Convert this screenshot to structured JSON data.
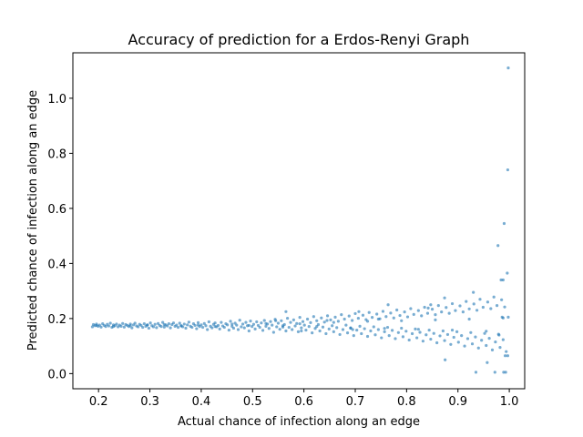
{
  "chart_data": {
    "type": "scatter",
    "title": "Accuracy of prediction for a Erdos-Renyi Graph",
    "xlabel": "Actual chance of infection along an edge",
    "ylabel": "Predicted chance of infection along an edge",
    "xlim": [
      0.15,
      1.03
    ],
    "ylim": [
      -0.055,
      1.165
    ],
    "xticks": [
      0.2,
      0.3,
      0.4,
      0.5,
      0.6,
      0.7,
      0.8,
      0.9,
      1.0
    ],
    "xtick_labels": [
      "0.2",
      "0.3",
      "0.4",
      "0.5",
      "0.6",
      "0.7",
      "0.8",
      "0.9",
      "1.0"
    ],
    "yticks": [
      0.0,
      0.2,
      0.4,
      0.6,
      0.8,
      1.0
    ],
    "ytick_labels": [
      "0.0",
      "0.2",
      "0.4",
      "0.6",
      "0.8",
      "1.0"
    ],
    "grid": false,
    "point_color": "#1f77b4",
    "points": [
      [
        0.188,
        0.17
      ],
      [
        0.19,
        0.178
      ],
      [
        0.193,
        0.174
      ],
      [
        0.196,
        0.18
      ],
      [
        0.199,
        0.172
      ],
      [
        0.202,
        0.176
      ],
      [
        0.205,
        0.169
      ],
      [
        0.208,
        0.181
      ],
      [
        0.211,
        0.175
      ],
      [
        0.214,
        0.171
      ],
      [
        0.217,
        0.179
      ],
      [
        0.22,
        0.173
      ],
      [
        0.223,
        0.183
      ],
      [
        0.226,
        0.168
      ],
      [
        0.229,
        0.177
      ],
      [
        0.232,
        0.174
      ],
      [
        0.235,
        0.18
      ],
      [
        0.238,
        0.17
      ],
      [
        0.241,
        0.176
      ],
      [
        0.244,
        0.172
      ],
      [
        0.247,
        0.182
      ],
      [
        0.25,
        0.169
      ],
      [
        0.253,
        0.178
      ],
      [
        0.256,
        0.175
      ],
      [
        0.259,
        0.171
      ],
      [
        0.262,
        0.18
      ],
      [
        0.265,
        0.166
      ],
      [
        0.268,
        0.177
      ],
      [
        0.271,
        0.183
      ],
      [
        0.274,
        0.173
      ],
      [
        0.277,
        0.17
      ],
      [
        0.28,
        0.179
      ],
      [
        0.283,
        0.175
      ],
      [
        0.286,
        0.168
      ],
      [
        0.289,
        0.181
      ],
      [
        0.292,
        0.172
      ],
      [
        0.295,
        0.177
      ],
      [
        0.298,
        0.165
      ],
      [
        0.301,
        0.184
      ],
      [
        0.304,
        0.174
      ],
      [
        0.307,
        0.17
      ],
      [
        0.31,
        0.179
      ],
      [
        0.313,
        0.167
      ],
      [
        0.316,
        0.182
      ],
      [
        0.319,
        0.175
      ],
      [
        0.322,
        0.171
      ],
      [
        0.325,
        0.186
      ],
      [
        0.328,
        0.169
      ],
      [
        0.331,
        0.177
      ],
      [
        0.334,
        0.173
      ],
      [
        0.337,
        0.181
      ],
      [
        0.34,
        0.166
      ],
      [
        0.343,
        0.178
      ],
      [
        0.346,
        0.184
      ],
      [
        0.349,
        0.172
      ],
      [
        0.352,
        0.176
      ],
      [
        0.355,
        0.168
      ],
      [
        0.358,
        0.183
      ],
      [
        0.361,
        0.174
      ],
      [
        0.364,
        0.17
      ],
      [
        0.367,
        0.18
      ],
      [
        0.37,
        0.165
      ],
      [
        0.373,
        0.177
      ],
      [
        0.376,
        0.187
      ],
      [
        0.379,
        0.172
      ],
      [
        0.382,
        0.168
      ],
      [
        0.385,
        0.181
      ],
      [
        0.388,
        0.175
      ],
      [
        0.391,
        0.163
      ],
      [
        0.394,
        0.185
      ],
      [
        0.397,
        0.171
      ],
      [
        0.4,
        0.177
      ],
      [
        0.403,
        0.168
      ],
      [
        0.406,
        0.182
      ],
      [
        0.409,
        0.174
      ],
      [
        0.412,
        0.16
      ],
      [
        0.415,
        0.188
      ],
      [
        0.418,
        0.172
      ],
      [
        0.421,
        0.166
      ],
      [
        0.424,
        0.179
      ],
      [
        0.427,
        0.184
      ],
      [
        0.43,
        0.17
      ],
      [
        0.433,
        0.175
      ],
      [
        0.436,
        0.162
      ],
      [
        0.439,
        0.186
      ],
      [
        0.442,
        0.173
      ],
      [
        0.445,
        0.168
      ],
      [
        0.448,
        0.181
      ],
      [
        0.451,
        0.177
      ],
      [
        0.454,
        0.158
      ],
      [
        0.457,
        0.19
      ],
      [
        0.46,
        0.172
      ],
      [
        0.463,
        0.165
      ],
      [
        0.466,
        0.183
      ],
      [
        0.469,
        0.176
      ],
      [
        0.472,
        0.16
      ],
      [
        0.475,
        0.194
      ],
      [
        0.478,
        0.17
      ],
      [
        0.481,
        0.18
      ],
      [
        0.484,
        0.166
      ],
      [
        0.487,
        0.186
      ],
      [
        0.49,
        0.174
      ],
      [
        0.493,
        0.155
      ],
      [
        0.496,
        0.191
      ],
      [
        0.499,
        0.171
      ],
      [
        0.502,
        0.179
      ],
      [
        0.505,
        0.162
      ],
      [
        0.508,
        0.188
      ],
      [
        0.511,
        0.175
      ],
      [
        0.514,
        0.168
      ],
      [
        0.517,
        0.184
      ],
      [
        0.52,
        0.157
      ],
      [
        0.523,
        0.193
      ],
      [
        0.526,
        0.172
      ],
      [
        0.529,
        0.18
      ],
      [
        0.532,
        0.164
      ],
      [
        0.535,
        0.189
      ],
      [
        0.538,
        0.176
      ],
      [
        0.541,
        0.15
      ],
      [
        0.544,
        0.197
      ],
      [
        0.547,
        0.17
      ],
      [
        0.55,
        0.183
      ],
      [
        0.553,
        0.161
      ],
      [
        0.556,
        0.192
      ],
      [
        0.559,
        0.174
      ],
      [
        0.562,
        0.178
      ],
      [
        0.565,
        0.155
      ],
      [
        0.568,
        0.201
      ],
      [
        0.571,
        0.168
      ],
      [
        0.574,
        0.186
      ],
      [
        0.577,
        0.16
      ],
      [
        0.58,
        0.195
      ],
      [
        0.583,
        0.173
      ],
      [
        0.586,
        0.182
      ],
      [
        0.589,
        0.152
      ],
      [
        0.592,
        0.204
      ],
      [
        0.595,
        0.166
      ],
      [
        0.598,
        0.189
      ],
      [
        0.601,
        0.176
      ],
      [
        0.604,
        0.158
      ],
      [
        0.607,
        0.198
      ],
      [
        0.61,
        0.171
      ],
      [
        0.613,
        0.185
      ],
      [
        0.616,
        0.148
      ],
      [
        0.619,
        0.207
      ],
      [
        0.622,
        0.164
      ],
      [
        0.625,
        0.192
      ],
      [
        0.628,
        0.178
      ],
      [
        0.631,
        0.155
      ],
      [
        0.634,
        0.202
      ],
      [
        0.637,
        0.169
      ],
      [
        0.64,
        0.187
      ],
      [
        0.643,
        0.145
      ],
      [
        0.646,
        0.21
      ],
      [
        0.649,
        0.162
      ],
      [
        0.652,
        0.195
      ],
      [
        0.655,
        0.174
      ],
      [
        0.658,
        0.152
      ],
      [
        0.661,
        0.205
      ],
      [
        0.664,
        0.167
      ],
      [
        0.667,
        0.19
      ],
      [
        0.67,
        0.142
      ],
      [
        0.673,
        0.214
      ],
      [
        0.676,
        0.16
      ],
      [
        0.679,
        0.198
      ],
      [
        0.682,
        0.176
      ],
      [
        0.685,
        0.148
      ],
      [
        0.688,
        0.209
      ],
      [
        0.691,
        0.165
      ],
      [
        0.694,
        0.193
      ],
      [
        0.697,
        0.138
      ],
      [
        0.7,
        0.218
      ],
      [
        0.703,
        0.158
      ],
      [
        0.706,
        0.201
      ],
      [
        0.709,
        0.172
      ],
      [
        0.712,
        0.145
      ],
      [
        0.715,
        0.212
      ],
      [
        0.718,
        0.163
      ],
      [
        0.721,
        0.196
      ],
      [
        0.724,
        0.135
      ],
      [
        0.727,
        0.222
      ],
      [
        0.73,
        0.155
      ],
      [
        0.733,
        0.204
      ],
      [
        0.736,
        0.17
      ],
      [
        0.739,
        0.141
      ],
      [
        0.742,
        0.216
      ],
      [
        0.745,
        0.16
      ],
      [
        0.748,
        0.199
      ],
      [
        0.751,
        0.13
      ],
      [
        0.754,
        0.226
      ],
      [
        0.757,
        0.152
      ],
      [
        0.76,
        0.207
      ],
      [
        0.763,
        0.168
      ],
      [
        0.766,
        0.138
      ],
      [
        0.769,
        0.22
      ],
      [
        0.772,
        0.157
      ],
      [
        0.775,
        0.202
      ],
      [
        0.778,
        0.127
      ],
      [
        0.781,
        0.231
      ],
      [
        0.784,
        0.149
      ],
      [
        0.787,
        0.211
      ],
      [
        0.79,
        0.165
      ],
      [
        0.793,
        0.134
      ],
      [
        0.796,
        0.224
      ],
      [
        0.799,
        0.154
      ],
      [
        0.802,
        0.206
      ],
      [
        0.805,
        0.122
      ],
      [
        0.808,
        0.236
      ],
      [
        0.811,
        0.145
      ],
      [
        0.814,
        0.215
      ],
      [
        0.817,
        0.162
      ],
      [
        0.82,
        0.13
      ],
      [
        0.823,
        0.229
      ],
      [
        0.826,
        0.15
      ],
      [
        0.829,
        0.21
      ],
      [
        0.832,
        0.118
      ],
      [
        0.835,
        0.241
      ],
      [
        0.838,
        0.141
      ],
      [
        0.841,
        0.219
      ],
      [
        0.844,
        0.158
      ],
      [
        0.847,
        0.125
      ],
      [
        0.85,
        0.234
      ],
      [
        0.853,
        0.146
      ],
      [
        0.856,
        0.214
      ],
      [
        0.859,
        0.112
      ],
      [
        0.862,
        0.247
      ],
      [
        0.865,
        0.137
      ],
      [
        0.868,
        0.224
      ],
      [
        0.871,
        0.155
      ],
      [
        0.874,
        0.12
      ],
      [
        0.877,
        0.24
      ],
      [
        0.88,
        0.142
      ],
      [
        0.883,
        0.219
      ],
      [
        0.886,
        0.106
      ],
      [
        0.889,
        0.254
      ],
      [
        0.892,
        0.132
      ],
      [
        0.895,
        0.229
      ],
      [
        0.898,
        0.152
      ],
      [
        0.901,
        0.114
      ],
      [
        0.904,
        0.246
      ],
      [
        0.907,
        0.138
      ],
      [
        0.91,
        0.224
      ],
      [
        0.913,
        0.1
      ],
      [
        0.916,
        0.262
      ],
      [
        0.919,
        0.127
      ],
      [
        0.922,
        0.235
      ],
      [
        0.925,
        0.149
      ],
      [
        0.928,
        0.108
      ],
      [
        0.931,
        0.253
      ],
      [
        0.934,
        0.133
      ],
      [
        0.937,
        0.23
      ],
      [
        0.94,
        0.093
      ],
      [
        0.943,
        0.27
      ],
      [
        0.946,
        0.121
      ],
      [
        0.949,
        0.241
      ],
      [
        0.952,
        0.146
      ],
      [
        0.955,
        0.102
      ],
      [
        0.958,
        0.26
      ],
      [
        0.961,
        0.128
      ],
      [
        0.964,
        0.236
      ],
      [
        0.967,
        0.086
      ],
      [
        0.97,
        0.278
      ],
      [
        0.973,
        0.115
      ],
      [
        0.976,
        0.247
      ],
      [
        0.979,
        0.143
      ],
      [
        0.982,
        0.095
      ],
      [
        0.985,
        0.268
      ],
      [
        0.988,
        0.123
      ],
      [
        0.991,
        0.242
      ],
      [
        0.994,
        0.08
      ],
      [
        0.196,
        0.175
      ],
      [
        0.229,
        0.171
      ],
      [
        0.262,
        0.174
      ],
      [
        0.295,
        0.176
      ],
      [
        0.328,
        0.178
      ],
      [
        0.361,
        0.173
      ],
      [
        0.394,
        0.176
      ],
      [
        0.427,
        0.171
      ],
      [
        0.46,
        0.18
      ],
      [
        0.493,
        0.175
      ],
      [
        0.526,
        0.182
      ],
      [
        0.559,
        0.169
      ],
      [
        0.592,
        0.181
      ],
      [
        0.625,
        0.171
      ],
      [
        0.658,
        0.186
      ],
      [
        0.691,
        0.166
      ],
      [
        0.724,
        0.19
      ],
      [
        0.757,
        0.164
      ],
      [
        0.79,
        0.192
      ],
      [
        0.823,
        0.161
      ],
      [
        0.856,
        0.195
      ],
      [
        0.889,
        0.158
      ],
      [
        0.922,
        0.198
      ],
      [
        0.955,
        0.154
      ],
      [
        0.988,
        0.202
      ],
      [
        0.545,
        0.192
      ],
      [
        0.595,
        0.155
      ],
      [
        0.645,
        0.193
      ],
      [
        0.695,
        0.16
      ],
      [
        0.745,
        0.198
      ],
      [
        0.565,
        0.225
      ],
      [
        0.707,
        0.225
      ],
      [
        0.764,
        0.25
      ],
      [
        0.842,
        0.238
      ],
      [
        0.847,
        0.25
      ],
      [
        0.874,
        0.275
      ],
      [
        0.93,
        0.295
      ],
      [
        0.875,
        0.05
      ],
      [
        0.935,
        0.005
      ],
      [
        0.957,
        0.04
      ],
      [
        0.972,
        0.005
      ],
      [
        0.989,
        0.005
      ],
      [
        0.993,
        0.005
      ],
      [
        0.997,
        0.065
      ],
      [
        0.998,
        0.205
      ],
      [
        0.978,
        0.465
      ],
      [
        0.984,
        0.34
      ],
      [
        0.988,
        0.34
      ],
      [
        0.99,
        0.545
      ],
      [
        0.996,
        0.365
      ],
      [
        0.997,
        0.74
      ],
      [
        0.998,
        1.11
      ],
      [
        0.986,
        0.205
      ],
      [
        0.98,
        0.14
      ],
      [
        0.992,
        0.065
      ]
    ]
  }
}
